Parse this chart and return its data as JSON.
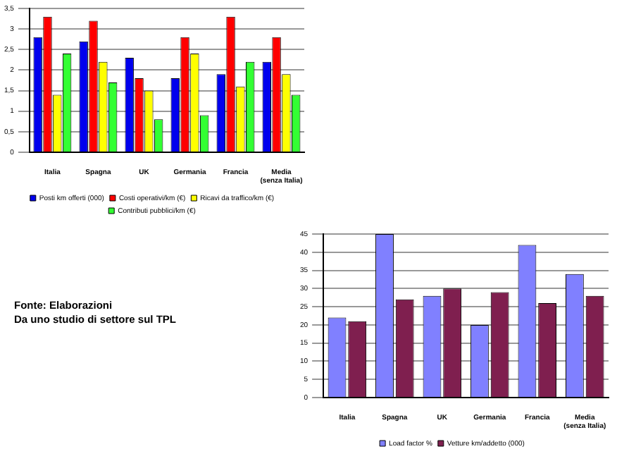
{
  "chart_data": [
    {
      "type": "bar",
      "categories": [
        "Italia",
        "Spagna",
        "UK",
        "Germania",
        "Francia",
        "Media (senza Italia)"
      ],
      "series": [
        {
          "name": "Posti km offerti (000)",
          "color": "#0000ee",
          "values": [
            2.8,
            2.7,
            2.3,
            1.8,
            1.9,
            2.2
          ]
        },
        {
          "name": "Costi operativi/km (€)",
          "color": "#ff0000",
          "values": [
            3.3,
            3.2,
            1.8,
            2.8,
            3.3,
            2.8
          ]
        },
        {
          "name": "Ricavi da traffico/km (€)",
          "color": "#ffff00",
          "values": [
            1.4,
            2.2,
            1.5,
            2.4,
            1.6,
            1.9
          ]
        },
        {
          "name": "Contributi pubblici/km (€)",
          "color": "#33ff33",
          "values": [
            2.4,
            1.7,
            0.8,
            0.9,
            2.2,
            1.4
          ]
        }
      ],
      "ylim": [
        0,
        3.5
      ],
      "yticks": [
        0,
        {
          "value": 0.5,
          "label": "0,5"
        },
        1,
        {
          "value": 1.5,
          "label": "1,5"
        },
        2,
        {
          "value": 2.5,
          "label": "2,5"
        },
        3,
        {
          "value": 3.5,
          "label": "3,5"
        }
      ],
      "grid": "y",
      "legend": "bottom",
      "annotations": [
        "Fonte: Elaborazioni",
        "Da uno studio di settore sul TPL"
      ]
    },
    {
      "type": "bar",
      "categories": [
        "Italia",
        "Spagna",
        "UK",
        "Germania",
        "Francia",
        "Media (senza Italia)"
      ],
      "series": [
        {
          "name": "Load factor %",
          "color": "#8080ff",
          "values": [
            22,
            45,
            28,
            20,
            42,
            34
          ]
        },
        {
          "name": "Vetture km/addetto (000)",
          "color": "#7f1f4f",
          "values": [
            21,
            27,
            30,
            29,
            26,
            28
          ]
        }
      ],
      "ylim": [
        0,
        45
      ],
      "yticks": [
        0,
        5,
        10,
        15,
        20,
        25,
        30,
        35,
        40,
        45
      ],
      "grid": "y",
      "legend": "bottom"
    }
  ]
}
